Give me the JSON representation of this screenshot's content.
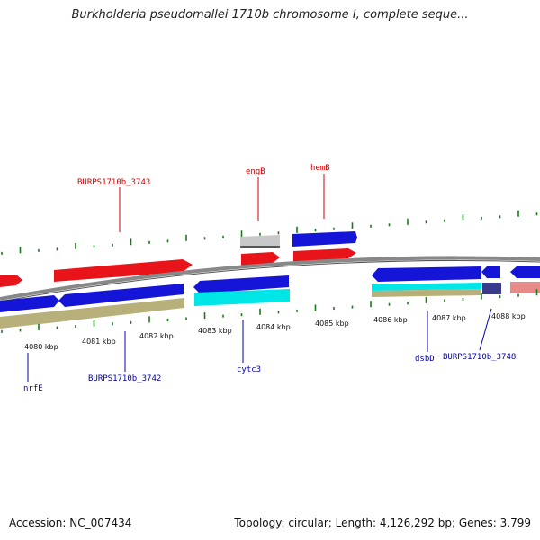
{
  "title": "Burkholderia pseudomallei 1710b chromosome I, complete seque...",
  "colors": {
    "forward": "#e8141a",
    "reverse": "#1515d8",
    "rna": "#00e5e5",
    "pseudo": "#c8c8c8",
    "olive": "#b8b07a",
    "pink": "#e88a8a",
    "backbone": "#888888",
    "tick": "#1a7a1a",
    "label_red": "#cc0000",
    "label_blue": "#0000aa"
  },
  "scale_labels": [
    "4080 kbp",
    "4081 kbp",
    "4082 kbp",
    "4083 kbp",
    "4084 kbp",
    "4085 kbp",
    "4086 kbp",
    "4087 kbp",
    "4088 kbp"
  ],
  "gene_labels_top": [
    "BURPS1710b_3743",
    "engB",
    "hemB"
  ],
  "gene_labels_bottom": [
    "nrfE",
    "BURPS1710b_3742",
    "cytc3",
    "dsbD",
    "BURPS1710b_3748"
  ],
  "footer": {
    "accession": "Accession: NC_007434",
    "topology": "Topology: circular",
    "length": "Length: 4,126,292 bp",
    "genes": "Genes: 3,799"
  }
}
